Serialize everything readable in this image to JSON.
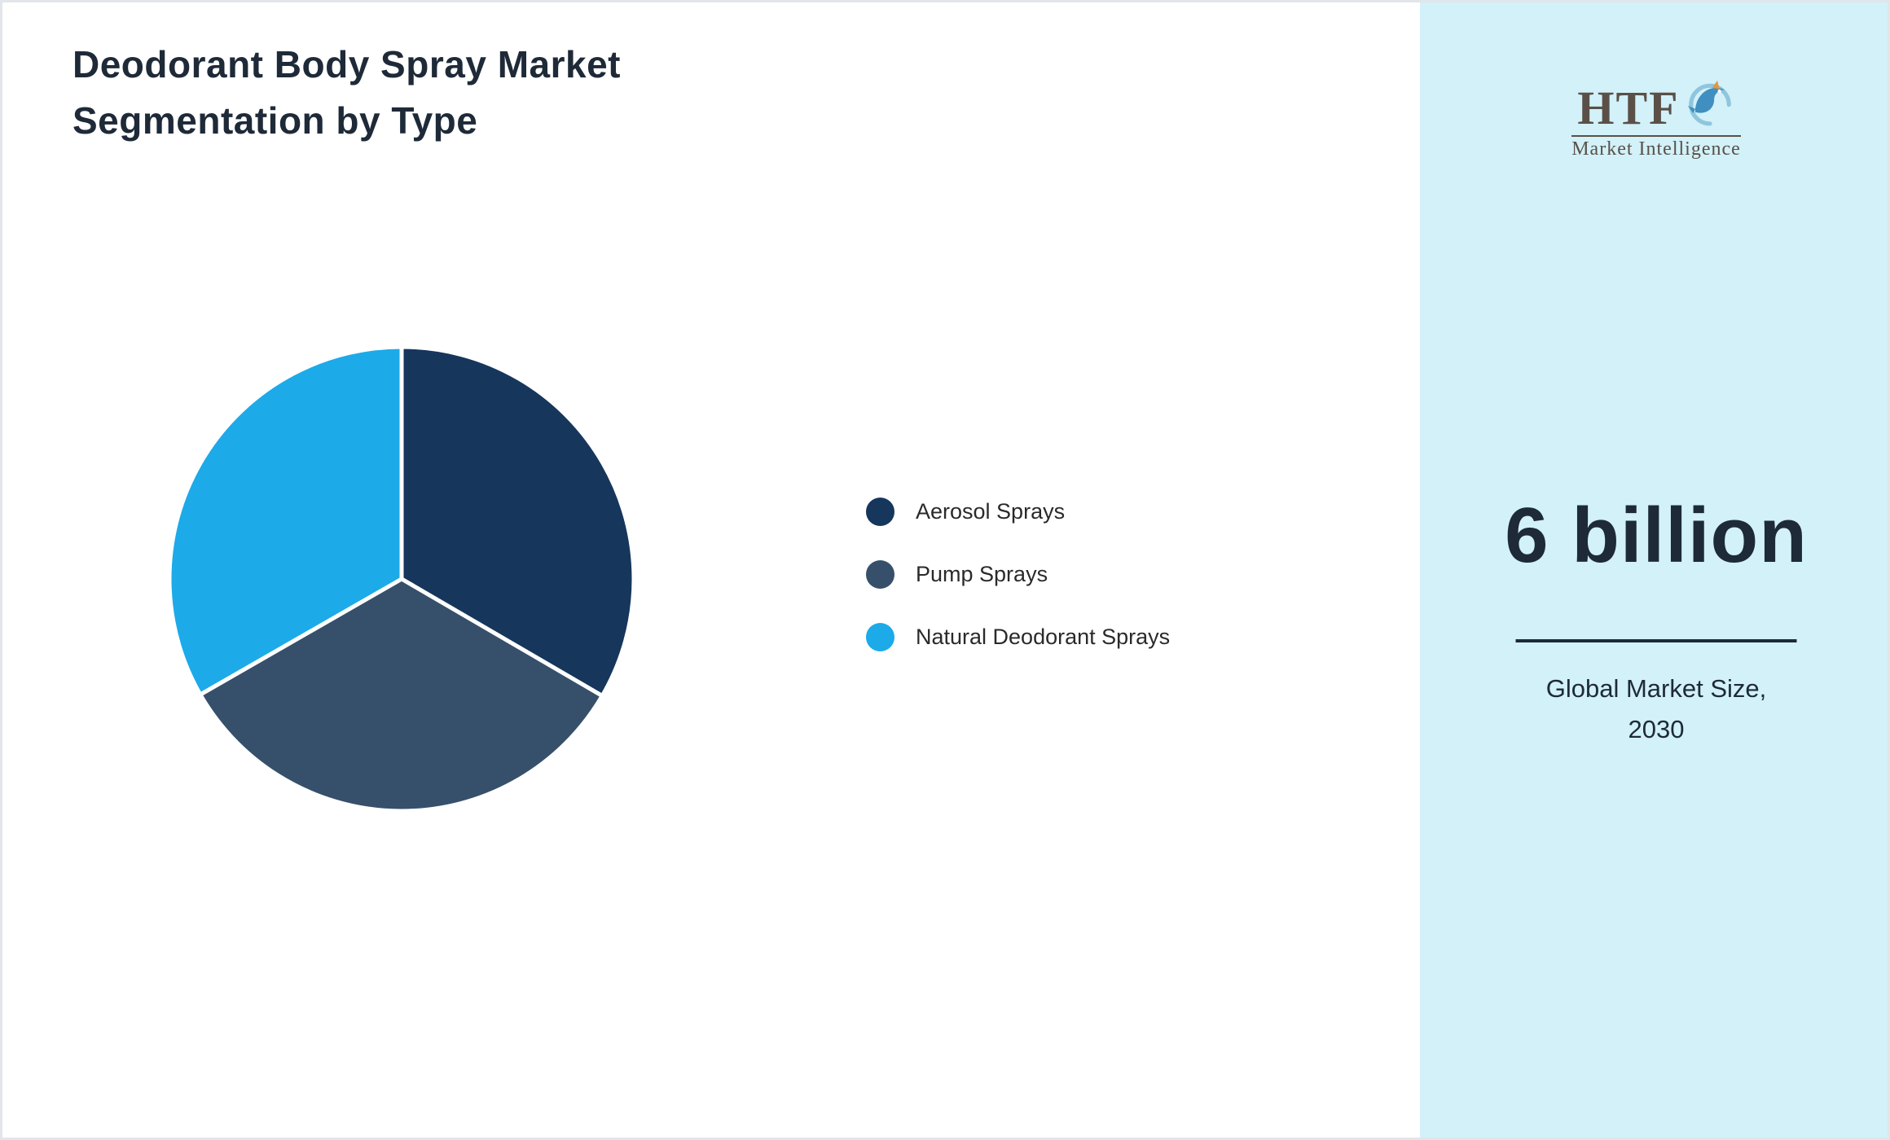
{
  "title": "Deodorant Body Spray Market Segmentation by Type",
  "chart_data": {
    "type": "pie",
    "title": "Deodorant Body Spray Market Segmentation by Type",
    "labels": [
      "Aerosol Sprays",
      "Pump Sprays",
      "Natural Deodorant Sprays"
    ],
    "values": [
      33.4,
      33.3,
      33.3
    ],
    "colors": [
      "#16365c",
      "#36506b",
      "#1caae9"
    ],
    "legend_position": "right",
    "start_angle_deg": -90,
    "direction": "clockwise",
    "slice_gap_color": "#ffffff"
  },
  "side_panel": {
    "background": "#d2f1f9",
    "logo_text": "HTF",
    "logo_subtext": "Market Intelligence",
    "market_size": "6 billion",
    "caption_line1": "Global Market Size,",
    "caption_line2": "2030"
  }
}
